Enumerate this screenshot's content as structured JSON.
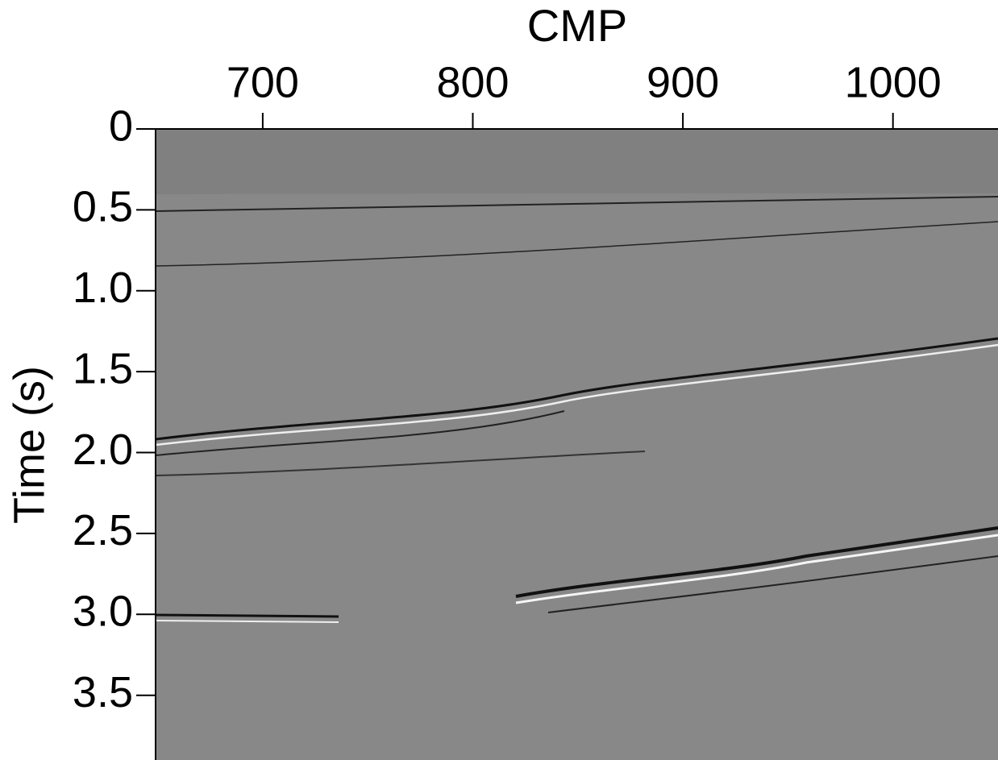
{
  "chart_data": {
    "type": "image",
    "title": "CMP",
    "ylabel": "Time (s)",
    "xlim": [
      649,
      1050
    ],
    "xticks": [
      700,
      800,
      900,
      1000
    ],
    "ylim": [
      0,
      3.9
    ],
    "yticks": [
      0,
      0.5,
      {
        "value": 1,
        "label": "1.0"
      },
      1.5,
      {
        "value": 2,
        "label": "2.0"
      },
      2.5,
      {
        "value": 3,
        "label": "3.0"
      },
      3.5
    ],
    "colormap": "gray"
  }
}
